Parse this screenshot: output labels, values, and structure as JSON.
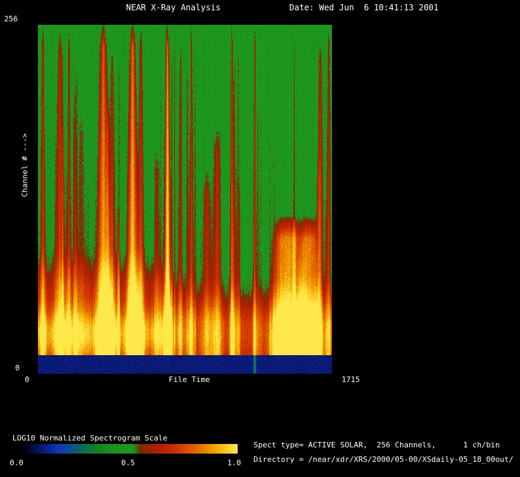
{
  "window": {
    "background": "#000000",
    "text_color": "#ffffff"
  },
  "header": {
    "title": "NEAR X-Ray Analysis",
    "date": "Date: Wed Jun  6 10:41:13 2001"
  },
  "y_axis": {
    "max": "256",
    "min": "0",
    "title": "Channel # --->"
  },
  "x_axis": {
    "min": "0",
    "title": "File Time",
    "max": "1715"
  },
  "colorbar": {
    "title": "LOG10 Normalized Spectrogram Scale",
    "ticks": [
      "0.0",
      "0.5",
      "1.0"
    ]
  },
  "info": {
    "spect_type_line": "Spect type= ACTIVE SOLAR,  256 Channels,      1 ch/bin",
    "directory_line": "Directory = /near/xdr/XRS/2000/05-00/XSdaily-05_18_00out/"
  },
  "chart_data": {
    "type": "heatmap",
    "title": "NEAR X-Ray Analysis",
    "xlabel": "File Time",
    "ylabel": "Channel #",
    "xlim": [
      0,
      1715
    ],
    "ylim": [
      0,
      256
    ],
    "channels": 256,
    "ch_per_bin": 1,
    "spect_type": "ACTIVE SOLAR",
    "colorbar_label": "LOG10 Normalized Spectrogram Scale",
    "colorbar_range": [
      0.0,
      1.0
    ],
    "colorbar_ticks": [
      0.0,
      0.5,
      1.0
    ],
    "legend_position": "bottom-left",
    "colormap_stops": [
      [
        0.0,
        "#000000"
      ],
      [
        0.05,
        "#02031c"
      ],
      [
        0.12,
        "#0a1a78"
      ],
      [
        0.19,
        "#1535b4"
      ],
      [
        0.25,
        "#0e538c"
      ],
      [
        0.31,
        "#0f6f4a"
      ],
      [
        0.38,
        "#168424"
      ],
      [
        0.45,
        "#1d941d"
      ],
      [
        0.53,
        "#1f9a1f"
      ],
      [
        0.56,
        "#6e3008"
      ],
      [
        0.62,
        "#a81e00"
      ],
      [
        0.72,
        "#cc3000"
      ],
      [
        0.82,
        "#e46a00"
      ],
      [
        0.9,
        "#f4a800"
      ],
      [
        1.0,
        "#ffe84a"
      ]
    ],
    "features": {
      "seed": 1234567,
      "base_value": 0.47,
      "pixel_noise": 0.08,
      "column_noise": 0.05,
      "band_amp": 0.18,
      "band_top_base": 0.62,
      "band_top_shift": 0.08,
      "glow_amp": 0.24,
      "glow_center": 0.885,
      "glow_sigma": 0.05,
      "bottom_band_start": 0.948,
      "bottom_band_value": 0.12,
      "minor_streak_count": 26,
      "streaks": [
        {
          "x": 0.016,
          "amp": 0.28,
          "w": 0.005
        },
        {
          "x": 0.075,
          "amp": 0.3,
          "w": 0.01,
          "top": 0.02
        },
        {
          "x": 0.105,
          "amp": 0.26,
          "w": 0.004
        },
        {
          "x": 0.148,
          "amp": 0.14,
          "w": 0.007,
          "top": 0.25
        },
        {
          "x": 0.222,
          "amp": 0.5,
          "w": 0.012
        },
        {
          "x": 0.252,
          "amp": 0.26,
          "w": 0.006,
          "top": 0.08
        },
        {
          "x": 0.322,
          "amp": 0.55,
          "w": 0.01
        },
        {
          "x": 0.35,
          "amp": 0.3,
          "w": 0.006
        },
        {
          "x": 0.405,
          "amp": 0.18,
          "w": 0.006,
          "top": 0.35
        },
        {
          "x": 0.44,
          "amp": 0.5,
          "w": 0.006
        },
        {
          "x": 0.485,
          "amp": 0.22,
          "w": 0.004,
          "top": 0.05
        },
        {
          "x": 0.522,
          "amp": 0.3,
          "w": 0.0035
        },
        {
          "x": 0.575,
          "amp": 0.22,
          "w": 0.009,
          "top": 0.42
        },
        {
          "x": 0.61,
          "amp": 0.26,
          "w": 0.008,
          "top": 0.3
        },
        {
          "x": 0.66,
          "amp": 0.34,
          "w": 0.0035
        },
        {
          "x": 0.738,
          "amp": 0.3,
          "w": 0.0028,
          "full": true
        },
        {
          "x": 0.85,
          "amp": 0.46,
          "w": 0.032,
          "top": 0.55,
          "p": 4
        },
        {
          "x": 0.922,
          "amp": 0.44,
          "w": 0.02,
          "top": 0.55,
          "p": 4
        },
        {
          "x": 0.962,
          "amp": 0.3,
          "w": 0.006,
          "top": 0.05
        },
        {
          "x": 0.99,
          "amp": 0.28,
          "w": 0.004
        }
      ]
    }
  }
}
